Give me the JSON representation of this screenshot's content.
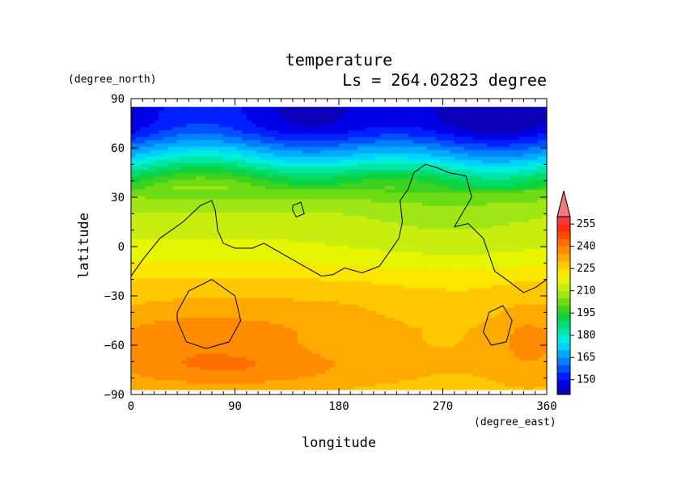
{
  "chart_data": {
    "type": "heatmap",
    "title": "temperature",
    "subtitle": "Ls = 264.02823 degree",
    "xlabel": "longitude",
    "ylabel": "latitude",
    "x_units": "(degree_east)",
    "y_units": "(degree_north)",
    "xlim": [
      0,
      360
    ],
    "ylim": [
      -90,
      90
    ],
    "x_ticks": [
      0,
      90,
      180,
      270,
      360
    ],
    "y_ticks": [
      90,
      60,
      30,
      0,
      -30,
      -60,
      -90
    ],
    "x_tick_labels": [
      "0",
      "90",
      "180",
      "270",
      "360"
    ],
    "y_tick_labels": [
      "90",
      "60",
      "30",
      "0",
      "−30",
      "−60",
      "−90"
    ],
    "data_extent": {
      "lon": [
        0,
        360
      ],
      "lat": [
        -87,
        85
      ]
    },
    "colorbar": {
      "levels": [
        150,
        165,
        180,
        195,
        210,
        225,
        240,
        255
      ],
      "level_labels": [
        "150",
        "165",
        "180",
        "195",
        "210",
        "225",
        "240",
        "255"
      ],
      "step": 5,
      "bins": [
        {
          "upper": 145,
          "color": "#0a00b8"
        },
        {
          "upper": 150,
          "color": "#0000e6"
        },
        {
          "upper": 155,
          "color": "#0020ff"
        },
        {
          "upper": 160,
          "color": "#0050ff"
        },
        {
          "upper": 165,
          "color": "#0080ff"
        },
        {
          "upper": 170,
          "color": "#00aaff"
        },
        {
          "upper": 175,
          "color": "#00d2ff"
        },
        {
          "upper": 180,
          "color": "#00eedd"
        },
        {
          "upper": 185,
          "color": "#00e6a8"
        },
        {
          "upper": 190,
          "color": "#00dc6e"
        },
        {
          "upper": 195,
          "color": "#10d23c"
        },
        {
          "upper": 200,
          "color": "#3cd21e"
        },
        {
          "upper": 205,
          "color": "#6edc14"
        },
        {
          "upper": 210,
          "color": "#a0e614"
        },
        {
          "upper": 215,
          "color": "#c8ee10"
        },
        {
          "upper": 220,
          "color": "#e6f500"
        },
        {
          "upper": 225,
          "color": "#fae600"
        },
        {
          "upper": 230,
          "color": "#ffc800"
        },
        {
          "upper": 235,
          "color": "#ffaa00"
        },
        {
          "upper": 240,
          "color": "#ff8c00"
        },
        {
          "upper": 245,
          "color": "#ff6e00"
        },
        {
          "upper": 250,
          "color": "#ff4a00"
        },
        {
          "upper": 255,
          "color": "#ff2a10"
        },
        {
          "upper": 260,
          "color": "#f03c3c"
        }
      ],
      "over_color": "#ef7a7a"
    },
    "contour_color": "#000000"
  }
}
